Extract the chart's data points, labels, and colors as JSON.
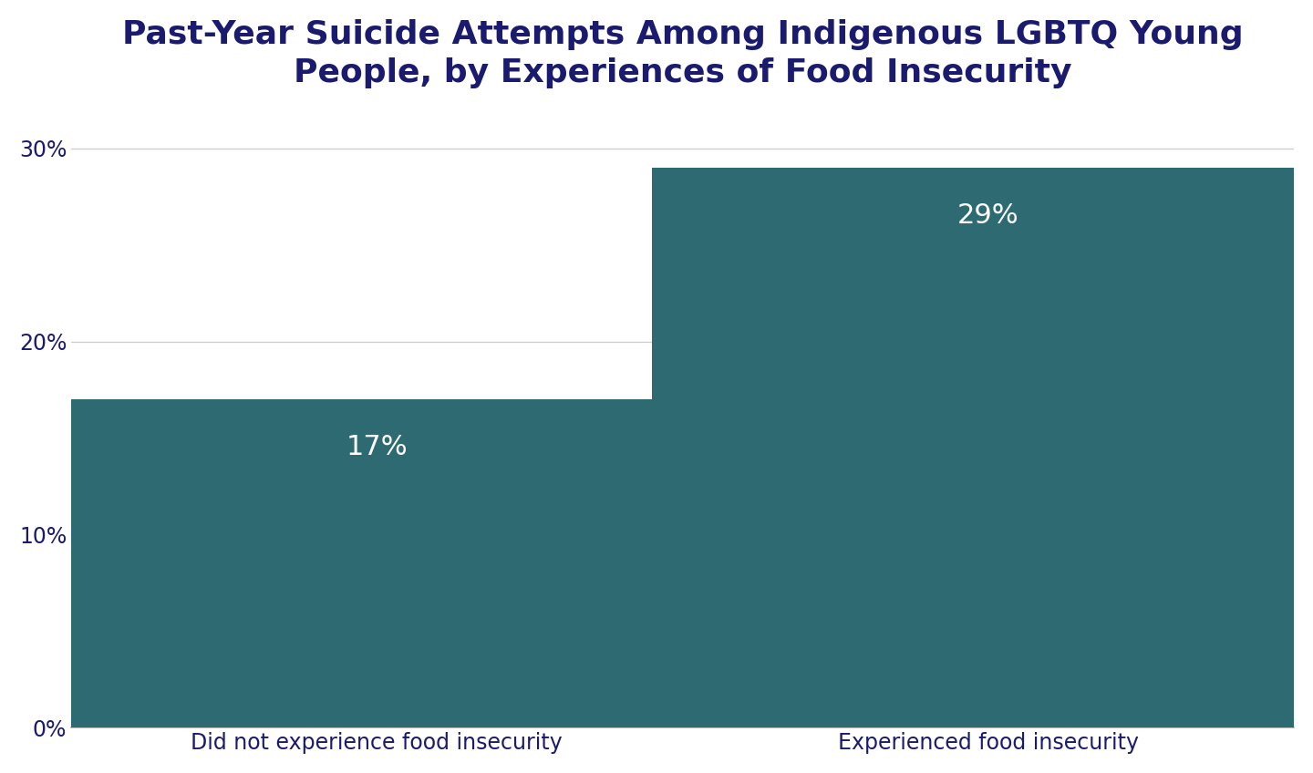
{
  "title": "Past-Year Suicide Attempts Among Indigenous LGBTQ Young\nPeople, by Experiences of Food Insecurity",
  "categories": [
    "Did not experience food insecurity",
    "Experienced food insecurity"
  ],
  "values": [
    17,
    29
  ],
  "labels": [
    "17%",
    "29%"
  ],
  "bar_color": "#2d6a72",
  "background_color": "#ffffff",
  "title_color": "#1a1a6e",
  "label_color": "#ffffff",
  "tick_color": "#1a1a6e",
  "grid_color": "#cccccc",
  "ylim": [
    0,
    32
  ],
  "yticks": [
    0,
    10,
    20,
    30
  ],
  "ytick_labels": [
    "0%",
    "10%",
    "20%",
    "30%"
  ],
  "title_fontsize": 26,
  "label_fontsize": 22,
  "tick_fontsize": 17,
  "bar_width": 0.55,
  "x_positions": [
    0.25,
    0.75
  ],
  "xlim": [
    0,
    1.0
  ]
}
